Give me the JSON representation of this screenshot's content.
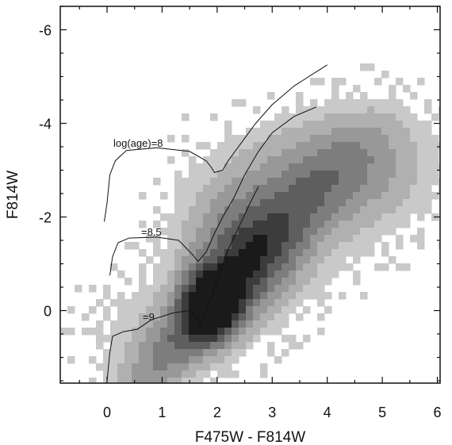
{
  "chart_data": {
    "type": "heatmap",
    "title": "",
    "xlabel": "F475W - F814W",
    "ylabel": "F814W",
    "xlim": [
      -0.85,
      6.05
    ],
    "ylim": [
      1.55,
      -6.5
    ],
    "y_inverted": true,
    "grid": false,
    "x_ticks": [
      0,
      1,
      2,
      3,
      4,
      5,
      6
    ],
    "y_ticks": [
      -6,
      -4,
      -2,
      0
    ],
    "density": {
      "description_levels": [
        "very light gray",
        "light gray",
        "mid gray",
        "dark gray",
        "near black"
      ],
      "peak": {
        "x": 1.9,
        "y": -0.2
      },
      "components": [
        {
          "x": 1.9,
          "y": -0.1,
          "sx": 0.35,
          "sy": 0.5,
          "amp": 1.0
        },
        {
          "x": 2.5,
          "y": -1.2,
          "sx": 0.75,
          "sy": 0.9,
          "amp": 0.55
        },
        {
          "x": 3.6,
          "y": -2.6,
          "sx": 1.2,
          "sy": 1.0,
          "amp": 0.35
        },
        {
          "x": 4.8,
          "y": -3.3,
          "sx": 0.9,
          "sy": 0.8,
          "amp": 0.22
        },
        {
          "x": 1.0,
          "y": 0.4,
          "sx": 1.0,
          "sy": 0.8,
          "amp": 0.18
        }
      ]
    },
    "isochrones": [
      {
        "label": "log(age)=8",
        "points": [
          [
            -0.05,
            -1.9
          ],
          [
            0.0,
            -2.3
          ],
          [
            0.05,
            -2.9
          ],
          [
            0.15,
            -3.2
          ],
          [
            0.35,
            -3.42
          ],
          [
            0.9,
            -3.48
          ],
          [
            1.5,
            -3.4
          ],
          [
            1.8,
            -3.2
          ],
          [
            1.9,
            -3.05
          ],
          [
            1.95,
            -2.95
          ],
          [
            2.1,
            -3.0
          ],
          [
            2.2,
            -3.2
          ],
          [
            2.45,
            -3.6
          ],
          [
            2.7,
            -4.0
          ],
          [
            3.0,
            -4.4
          ],
          [
            3.4,
            -4.8
          ],
          [
            3.8,
            -5.1
          ],
          [
            4.0,
            -5.25
          ]
        ]
      },
      {
        "label": "=8.5",
        "points": [
          [
            0.05,
            -0.75
          ],
          [
            0.1,
            -1.15
          ],
          [
            0.2,
            -1.45
          ],
          [
            0.4,
            -1.55
          ],
          [
            0.9,
            -1.57
          ],
          [
            1.3,
            -1.5
          ],
          [
            1.55,
            -1.2
          ],
          [
            1.65,
            -1.05
          ],
          [
            1.8,
            -1.25
          ],
          [
            1.95,
            -1.65
          ],
          [
            2.1,
            -2.0
          ],
          [
            2.3,
            -2.4
          ],
          [
            2.5,
            -2.9
          ],
          [
            2.75,
            -3.4
          ],
          [
            3.0,
            -3.8
          ],
          [
            3.4,
            -4.15
          ],
          [
            3.8,
            -4.35
          ]
        ]
      },
      {
        "label": "=9",
        "points": [
          [
            0.0,
            1.5
          ],
          [
            0.05,
            0.9
          ],
          [
            0.1,
            0.55
          ],
          [
            0.3,
            0.45
          ],
          [
            0.55,
            0.4
          ],
          [
            0.8,
            0.2
          ],
          [
            1.2,
            0.05
          ],
          [
            1.5,
            0.0
          ],
          [
            1.65,
            0.2
          ],
          [
            1.7,
            0.35
          ],
          [
            1.75,
            0.15
          ],
          [
            1.9,
            -0.3
          ],
          [
            2.05,
            -0.8
          ],
          [
            2.2,
            -1.3
          ],
          [
            2.4,
            -1.8
          ],
          [
            2.6,
            -2.3
          ],
          [
            2.75,
            -2.65
          ]
        ]
      }
    ]
  }
}
